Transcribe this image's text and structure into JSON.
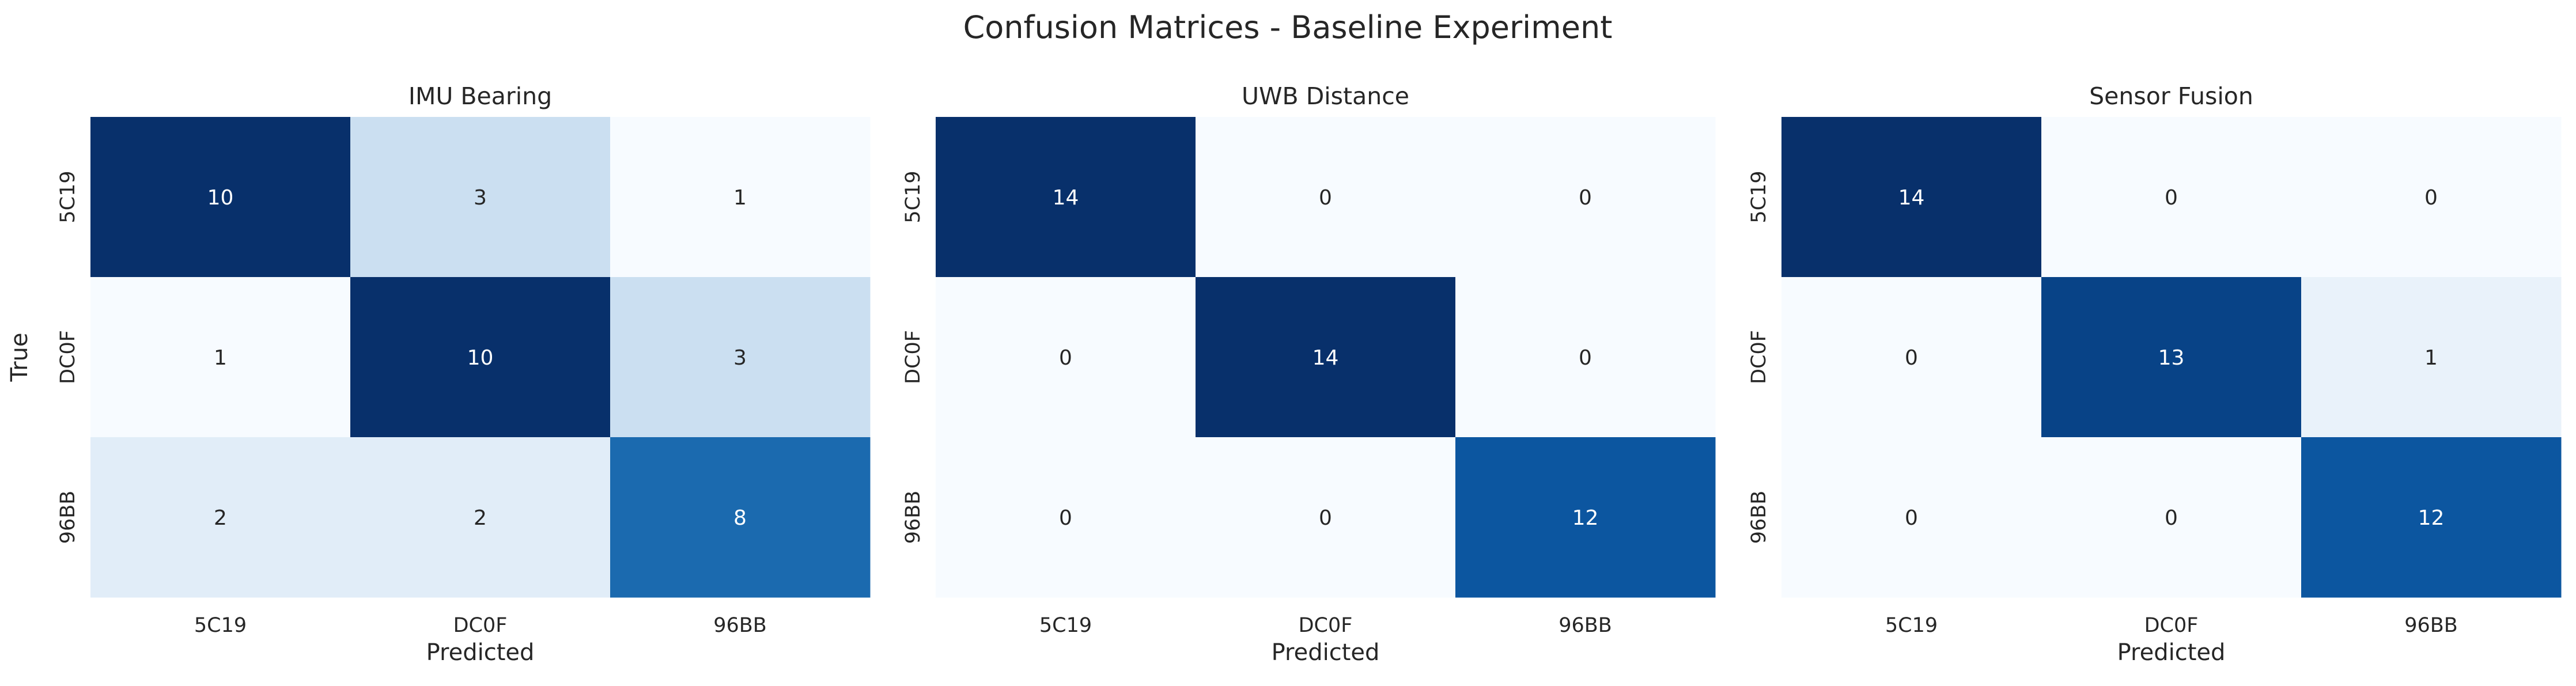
{
  "chart_data": {
    "figure_title": "Confusion Matrices - Baseline Experiment",
    "charts": [
      {
        "type": "heatmap",
        "title": "IMU Bearing",
        "xlabel": "Predicted",
        "ylabel": "True",
        "x_categories": [
          "5C19",
          "DC0F",
          "96BB"
        ],
        "y_categories": [
          "5C19",
          "DC0F",
          "96BB"
        ],
        "values": [
          [
            10,
            3,
            1
          ],
          [
            1,
            10,
            3
          ],
          [
            2,
            2,
            8
          ]
        ],
        "colormap": "Blues",
        "vmin": 1,
        "vmax": 10
      },
      {
        "type": "heatmap",
        "title": "UWB Distance",
        "xlabel": "Predicted",
        "ylabel": "",
        "x_categories": [
          "5C19",
          "DC0F",
          "96BB"
        ],
        "y_categories": [
          "5C19",
          "DC0F",
          "96BB"
        ],
        "values": [
          [
            14,
            0,
            0
          ],
          [
            0,
            14,
            0
          ],
          [
            0,
            0,
            12
          ]
        ],
        "colormap": "Blues",
        "vmin": 0,
        "vmax": 14
      },
      {
        "type": "heatmap",
        "title": "Sensor Fusion",
        "xlabel": "Predicted",
        "ylabel": "",
        "x_categories": [
          "5C19",
          "DC0F",
          "96BB"
        ],
        "y_categories": [
          "5C19",
          "DC0F",
          "96BB"
        ],
        "values": [
          [
            14,
            0,
            0
          ],
          [
            0,
            13,
            1
          ],
          [
            0,
            0,
            12
          ]
        ],
        "colormap": "Blues",
        "vmin": 0,
        "vmax": 14
      }
    ]
  },
  "colors": {
    "blues_low": "#f7fbff",
    "blues_high": "#08306b",
    "text_dark": "#262626",
    "text_on_dark": "#ffffff"
  }
}
